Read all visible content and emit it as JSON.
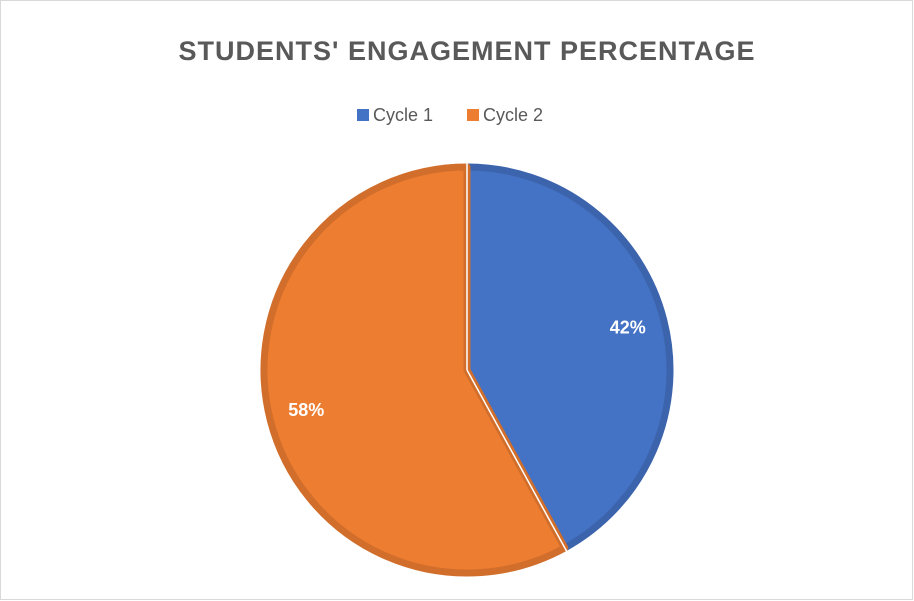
{
  "chart_data": {
    "type": "pie",
    "title": "STUDENTS' ENGAGEMENT PERCENTAGE",
    "categories": [
      "Cycle 1",
      "Cycle 2"
    ],
    "values": [
      42,
      58
    ],
    "value_labels": [
      "42%",
      "58%"
    ],
    "colors": [
      "#4472c4",
      "#ed7d31"
    ],
    "legend": "top"
  }
}
